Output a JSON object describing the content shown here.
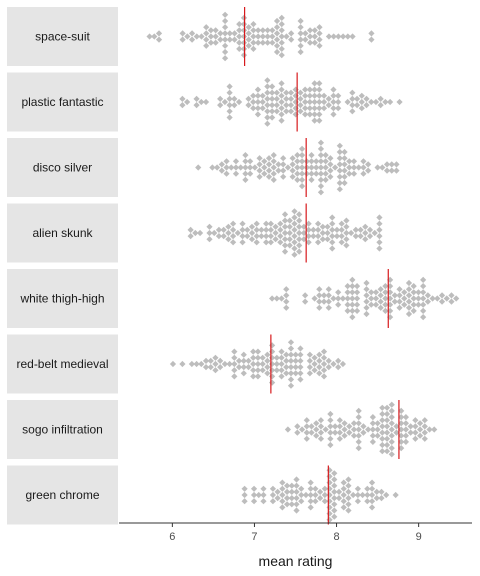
{
  "chart_data": {
    "type": "scatter",
    "subtype": "dot-strip-by-category",
    "xlabel": "mean rating",
    "x_ticks": [
      6,
      7,
      8,
      9
    ],
    "xlim": [
      5.35,
      9.65
    ],
    "grid": false,
    "legend": "none",
    "marker_color": "#bdbdbd",
    "mean_line_color": "#d7191c",
    "panels": [
      {
        "label": "space-suit",
        "mean": 6.88,
        "min": 5.55,
        "max": 8.6,
        "count": 110
      },
      {
        "label": "plastic fantastic",
        "mean": 7.52,
        "min": 5.95,
        "max": 8.85,
        "count": 130
      },
      {
        "label": "disco silver",
        "mean": 7.63,
        "min": 6.2,
        "max": 8.9,
        "count": 125
      },
      {
        "label": "alien skunk",
        "mean": 7.63,
        "min": 6.05,
        "max": 8.9,
        "count": 130
      },
      {
        "label": "white thigh-high",
        "mean": 8.63,
        "min": 7.1,
        "max": 9.55,
        "count": 110
      },
      {
        "label": "red-belt medieval",
        "mean": 7.2,
        "min": 5.95,
        "max": 8.3,
        "count": 105
      },
      {
        "label": "sogo infiltration",
        "mean": 8.76,
        "min": 7.35,
        "max": 9.45,
        "count": 110
      },
      {
        "label": "green chrome",
        "mean": 7.9,
        "min": 6.65,
        "max": 8.8,
        "count": 100
      }
    ]
  }
}
